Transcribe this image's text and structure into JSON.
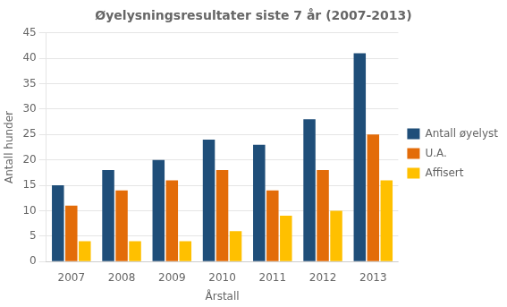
{
  "chart_data": {
    "type": "bar",
    "title": "Øyelysningsresultater siste 7 år (2007-2013)",
    "xlabel": "Årstall",
    "ylabel": "Antall hunder",
    "categories": [
      "2007",
      "2008",
      "2009",
      "2010",
      "2011",
      "2012",
      "2013"
    ],
    "series": [
      {
        "name": "Antall øyelyst",
        "color": "#1F4E79",
        "values": [
          15,
          18,
          20,
          24,
          23,
          28,
          41
        ]
      },
      {
        "name": "U.A.",
        "color": "#E36C09",
        "values": [
          11,
          14,
          16,
          18,
          14,
          18,
          25
        ]
      },
      {
        "name": "Affisert",
        "color": "#FFC000",
        "values": [
          4,
          4,
          4,
          6,
          9,
          10,
          16
        ]
      }
    ],
    "ylim": [
      0,
      45
    ],
    "yticks": [
      0,
      5,
      10,
      15,
      20,
      25,
      30,
      35,
      40,
      45
    ],
    "grid": true,
    "legend": "right"
  }
}
